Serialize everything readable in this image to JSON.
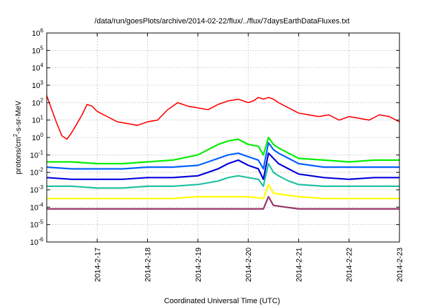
{
  "chart_data": {
    "type": "line",
    "title": "/data/run/goesPlots/archive/2014-02-22/flux/../flux/7daysEarthDataFluxes.txt",
    "xlabel": "Coordinated Universal Time (UTC)",
    "ylabel": "protons/cm2-s-sr-MeV",
    "ylabel_parts": {
      "base": "protons/cm",
      "sup": "2",
      "rest": "-s-sr-MeV"
    },
    "yscale": "log",
    "ylim_exponents": [
      -6,
      6
    ],
    "y_tick_exponents": [
      -6,
      -5,
      -4,
      -3,
      -2,
      -1,
      0,
      1,
      2,
      3,
      4,
      5,
      6
    ],
    "y_tick_base": "10",
    "xlim": [
      0,
      7
    ],
    "x_ticks": [
      {
        "x": 1,
        "label": "2014-2-17"
      },
      {
        "x": 2,
        "label": "2014-2-18"
      },
      {
        "x": 3,
        "label": "2014-2-19"
      },
      {
        "x": 4,
        "label": "2014-2-20"
      },
      {
        "x": 5,
        "label": "2014-2-21"
      },
      {
        "x": 6,
        "label": "2014-2-22"
      },
      {
        "x": 7,
        "label": "2014-2-23"
      }
    ],
    "grid": true,
    "series": [
      {
        "color": "#ff0000",
        "x": [
          0,
          0.1,
          0.2,
          0.3,
          0.4,
          0.5,
          0.6,
          0.7,
          0.8,
          0.9,
          1.0,
          1.2,
          1.4,
          1.6,
          1.8,
          2.0,
          2.2,
          2.4,
          2.6,
          2.8,
          3.0,
          3.2,
          3.4,
          3.6,
          3.8,
          4.0,
          4.1,
          4.2,
          4.3,
          4.4,
          4.5,
          4.6,
          4.8,
          5.0,
          5.2,
          5.4,
          5.6,
          5.8,
          6.0,
          6.2,
          6.4,
          6.6,
          6.8,
          7.0
        ],
        "logy": [
          2.4,
          1.6,
          0.8,
          0.1,
          -0.1,
          0.3,
          0.8,
          1.3,
          1.9,
          1.8,
          1.5,
          1.2,
          0.9,
          0.8,
          0.7,
          0.9,
          1.0,
          1.6,
          2.0,
          1.8,
          1.7,
          1.6,
          1.9,
          2.1,
          2.2,
          2.0,
          2.1,
          2.3,
          2.2,
          2.3,
          2.2,
          2.0,
          1.7,
          1.4,
          1.3,
          1.2,
          1.3,
          1.0,
          1.2,
          1.1,
          1.0,
          1.3,
          1.2,
          0.9
        ]
      },
      {
        "color": "#00ee00",
        "x": [
          0,
          0.5,
          1.0,
          1.5,
          2.0,
          2.5,
          3.0,
          3.2,
          3.4,
          3.6,
          3.8,
          4.0,
          4.2,
          4.3,
          4.4,
          4.5,
          4.6,
          4.8,
          5.0,
          5.5,
          6.0,
          6.5,
          7.0
        ],
        "logy": [
          -1.4,
          -1.4,
          -1.5,
          -1.5,
          -1.4,
          -1.3,
          -1.0,
          -0.7,
          -0.4,
          -0.2,
          -0.1,
          -0.4,
          -0.5,
          -1.0,
          0.0,
          -0.4,
          -0.6,
          -0.9,
          -1.2,
          -1.3,
          -1.4,
          -1.3,
          -1.3
        ]
      },
      {
        "color": "#0060ff",
        "x": [
          0,
          0.5,
          1.0,
          1.5,
          2.0,
          2.5,
          3.0,
          3.2,
          3.4,
          3.6,
          3.8,
          4.0,
          4.2,
          4.3,
          4.4,
          4.5,
          4.6,
          4.8,
          5.0,
          5.5,
          6.0,
          6.5,
          7.0
        ],
        "logy": [
          -1.7,
          -1.8,
          -1.8,
          -1.8,
          -1.7,
          -1.7,
          -1.6,
          -1.4,
          -1.2,
          -1.0,
          -0.9,
          -1.1,
          -1.3,
          -1.8,
          -0.3,
          -0.7,
          -0.9,
          -1.2,
          -1.5,
          -1.7,
          -1.7,
          -1.7,
          -1.7
        ]
      },
      {
        "color": "#0000dd",
        "x": [
          0,
          0.5,
          1.0,
          1.5,
          2.0,
          2.5,
          3.0,
          3.2,
          3.4,
          3.6,
          3.8,
          4.0,
          4.2,
          4.3,
          4.4,
          4.5,
          4.6,
          4.8,
          5.0,
          5.5,
          6.0,
          6.5,
          7.0
        ],
        "logy": [
          -2.3,
          -2.4,
          -2.4,
          -2.4,
          -2.3,
          -2.3,
          -2.2,
          -2.0,
          -1.8,
          -1.5,
          -1.3,
          -1.6,
          -1.8,
          -2.4,
          -0.9,
          -1.2,
          -1.5,
          -1.8,
          -2.1,
          -2.3,
          -2.4,
          -2.3,
          -2.3
        ]
      },
      {
        "color": "#20c0a0",
        "x": [
          0,
          0.5,
          1.0,
          1.5,
          2.0,
          2.5,
          3.0,
          3.2,
          3.4,
          3.6,
          3.8,
          4.0,
          4.2,
          4.3,
          4.4,
          4.5,
          4.6,
          4.8,
          5.0,
          5.5,
          6.0,
          6.5,
          7.0
        ],
        "logy": [
          -2.8,
          -2.8,
          -2.9,
          -2.9,
          -2.8,
          -2.8,
          -2.7,
          -2.6,
          -2.5,
          -2.3,
          -2.2,
          -2.3,
          -2.4,
          -2.8,
          -1.5,
          -2.0,
          -2.2,
          -2.5,
          -2.7,
          -2.8,
          -2.8,
          -2.8,
          -2.8
        ]
      },
      {
        "color": "#ffff00",
        "x": [
          0,
          0.5,
          1.0,
          1.5,
          2.0,
          2.5,
          3.0,
          3.5,
          4.0,
          4.3,
          4.4,
          4.5,
          5.0,
          5.5,
          6.0,
          6.5,
          7.0
        ],
        "logy": [
          -3.5,
          -3.5,
          -3.5,
          -3.5,
          -3.5,
          -3.5,
          -3.4,
          -3.4,
          -3.4,
          -3.5,
          -2.7,
          -3.2,
          -3.4,
          -3.5,
          -3.5,
          -3.5,
          -3.5
        ]
      },
      {
        "color": "#993366",
        "x": [
          0,
          0.5,
          1.0,
          1.5,
          2.0,
          2.5,
          3.0,
          3.5,
          4.0,
          4.3,
          4.4,
          4.5,
          5.0,
          5.5,
          6.0,
          6.5,
          7.0
        ],
        "logy": [
          -4.1,
          -4.1,
          -4.1,
          -4.1,
          -4.1,
          -4.1,
          -4.1,
          -4.1,
          -4.1,
          -4.1,
          -3.4,
          -3.9,
          -4.1,
          -4.1,
          -4.1,
          -4.1,
          -4.1
        ]
      }
    ]
  }
}
